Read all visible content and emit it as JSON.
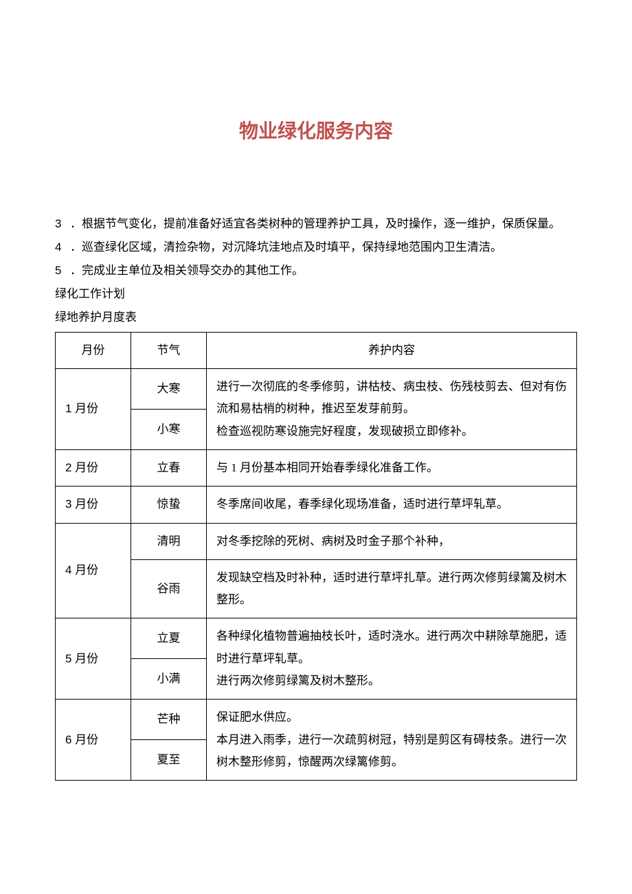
{
  "title": {
    "text": "物业绿化服务内容",
    "color": "#c0504d"
  },
  "paragraphs": [
    {
      "num": "3",
      "text": "．根据节气变化，提前准备好适宜各类树种的管理养护工具，及时操作，逐一维护，保质保量。"
    },
    {
      "num": "4",
      "text": "．巡查绿化区域，清捡杂物，对沉降坑洼地点及时填平，保持绿地范围内卫生清洁。"
    },
    {
      "num": "5",
      "text": "．完成业主单位及相关领导交办的其他工作。"
    }
  ],
  "subheadings": [
    "绿化工作计划",
    "绿地养护月度表"
  ],
  "table": {
    "headers": {
      "month": "月份",
      "term": "节气",
      "content": "养护内容"
    },
    "rows": [
      {
        "month": "1 月份",
        "terms": [
          "大寒",
          "小寒"
        ],
        "content": "进行一次彻底的冬季修剪，讲枯枝、病虫枝、伤残枝剪去、但对有伤流和易枯梢的树种，推迟至发芽前剪。\n检查巡视防寒设施完好程度，发现破损立即修补。"
      },
      {
        "month": "2 月份",
        "terms": [
          "立春"
        ],
        "content": "与 1 月份基本相同开始春季绿化准备工作。"
      },
      {
        "month": "3 月份",
        "terms": [
          "惊蛰"
        ],
        "content": "冬季席间收尾，春季绿化现场准备，适时进行草坪轧草。"
      },
      {
        "month": "4 月份",
        "terms": [
          "清明",
          "谷雨"
        ],
        "contents": [
          "对冬季挖除的死树、病树及时金子那个补种，",
          "发现缺空档及时补种，适时进行草坪扎草。进行两次修剪绿篱及树木整形。"
        ]
      },
      {
        "month": "5 月份",
        "terms": [
          "立夏",
          "小满"
        ],
        "content": "各种绿化植物普遍抽枝长叶，适时浇水。进行两次中耕除草施肥，适时进行草坪轧草。\n进行两次修剪绿篱及树木整形。"
      },
      {
        "month": "6 月份",
        "terms": [
          "芒种",
          "夏至"
        ],
        "content": "保证肥水供应。\n本月进入雨季，进行一次疏剪树冠，特别是剪区有碍枝条。进行一次树木整形修剪，惊醒两次绿篱修剪。"
      }
    ]
  }
}
